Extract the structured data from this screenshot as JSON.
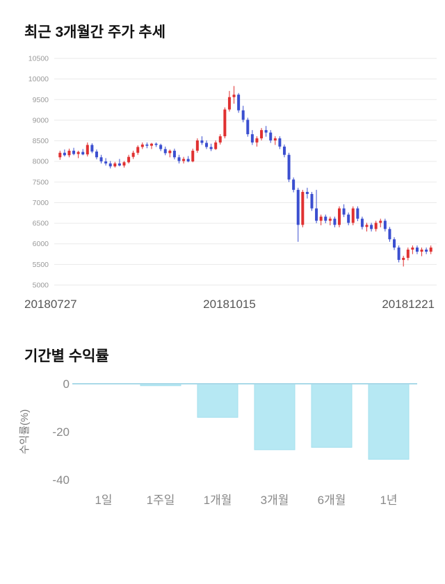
{
  "page": {
    "background": "#ffffff"
  },
  "chart_data": [
    {
      "type": "candlestick",
      "title": "최근 3개월간 주가 추세",
      "ylim": [
        5000,
        10500
      ],
      "ytick_step": 500,
      "yticks": [
        5000,
        5500,
        6000,
        6500,
        7000,
        7500,
        8000,
        8500,
        9000,
        9500,
        10000,
        10500
      ],
      "x_labels": [
        "20180727",
        "20181015",
        "20181221"
      ],
      "up_color": "#e03131",
      "down_color": "#3b4fd0",
      "grid_color": "#eaeaea",
      "tick_color": "#999999",
      "candles": [
        [
          8100,
          8260,
          8040,
          8210
        ],
        [
          8210,
          8290,
          8120,
          8150
        ],
        [
          8150,
          8310,
          8100,
          8260
        ],
        [
          8260,
          8330,
          8150,
          8180
        ],
        [
          8180,
          8260,
          8080,
          8230
        ],
        [
          8230,
          8300,
          8150,
          8170
        ],
        [
          8170,
          8460,
          8120,
          8400
        ],
        [
          8400,
          8440,
          8200,
          8240
        ],
        [
          8240,
          8290,
          8050,
          8100
        ],
        [
          8100,
          8160,
          7950,
          8000
        ],
        [
          8000,
          8080,
          7900,
          7950
        ],
        [
          7950,
          8010,
          7830,
          7880
        ],
        [
          7880,
          7990,
          7850,
          7950
        ],
        [
          7950,
          8060,
          7880,
          7900
        ],
        [
          7900,
          8010,
          7850,
          7980
        ],
        [
          7980,
          8160,
          7950,
          8110
        ],
        [
          8110,
          8260,
          8060,
          8210
        ],
        [
          8210,
          8390,
          8160,
          8350
        ],
        [
          8350,
          8460,
          8300,
          8410
        ],
        [
          8410,
          8460,
          8320,
          8380
        ],
        [
          8380,
          8450,
          8300,
          8430
        ],
        [
          8430,
          8460,
          8350,
          8400
        ],
        [
          8400,
          8430,
          8250,
          8300
        ],
        [
          8300,
          8360,
          8150,
          8200
        ],
        [
          8200,
          8290,
          8100,
          8260
        ],
        [
          8260,
          8310,
          8050,
          8100
        ],
        [
          8100,
          8160,
          7950,
          8010
        ],
        [
          8010,
          8110,
          7950,
          8060
        ],
        [
          8060,
          8130,
          7980,
          8000
        ],
        [
          8000,
          8310,
          7980,
          8260
        ],
        [
          8260,
          8560,
          8210,
          8510
        ],
        [
          8510,
          8610,
          8400,
          8450
        ],
        [
          8450,
          8510,
          8300,
          8350
        ],
        [
          8350,
          8430,
          8250,
          8300
        ],
        [
          8300,
          8510,
          8280,
          8460
        ],
        [
          8460,
          8660,
          8410,
          8610
        ],
        [
          8610,
          9310,
          8560,
          9260
        ],
        [
          9260,
          9710,
          9210,
          9560
        ],
        [
          9560,
          9830,
          9400,
          9620
        ],
        [
          9620,
          9660,
          9180,
          9240
        ],
        [
          9240,
          9350,
          8950,
          9010
        ],
        [
          9010,
          9060,
          8600,
          8660
        ],
        [
          8660,
          8760,
          8400,
          8460
        ],
        [
          8460,
          8610,
          8360,
          8560
        ],
        [
          8560,
          8810,
          8510,
          8760
        ],
        [
          8760,
          8860,
          8600,
          8700
        ],
        [
          8700,
          8760,
          8450,
          8510
        ],
        [
          8510,
          8610,
          8400,
          8560
        ],
        [
          8560,
          8610,
          8300,
          8360
        ],
        [
          8360,
          8410,
          8100,
          8160
        ],
        [
          8160,
          8210,
          7500,
          7560
        ],
        [
          7560,
          7610,
          7250,
          7310
        ],
        [
          7310,
          7360,
          6050,
          6460
        ],
        [
          6460,
          7310,
          6400,
          7260
        ],
        [
          7260,
          7360,
          7100,
          7210
        ],
        [
          7210,
          7260,
          6800,
          6860
        ],
        [
          6860,
          7310,
          6500,
          6560
        ],
        [
          6560,
          6710,
          6450,
          6660
        ],
        [
          6660,
          6710,
          6500,
          6560
        ],
        [
          6560,
          6660,
          6450,
          6610
        ],
        [
          6610,
          6660,
          6400,
          6460
        ],
        [
          6460,
          6910,
          6400,
          6860
        ],
        [
          6860,
          6960,
          6650,
          6710
        ],
        [
          6710,
          6760,
          6450,
          6510
        ],
        [
          6510,
          6910,
          6450,
          6860
        ],
        [
          6860,
          6910,
          6550,
          6610
        ],
        [
          6610,
          6660,
          6350,
          6410
        ],
        [
          6410,
          6510,
          6300,
          6460
        ],
        [
          6460,
          6510,
          6300,
          6360
        ],
        [
          6360,
          6560,
          6300,
          6510
        ],
        [
          6510,
          6610,
          6400,
          6560
        ],
        [
          6560,
          6610,
          6300,
          6360
        ],
        [
          6360,
          6410,
          6050,
          6110
        ],
        [
          6110,
          6160,
          5850,
          5910
        ],
        [
          5910,
          5960,
          5550,
          5610
        ],
        [
          5610,
          5710,
          5450,
          5660
        ],
        [
          5660,
          5910,
          5600,
          5860
        ],
        [
          5860,
          5960,
          5750,
          5910
        ],
        [
          5910,
          5960,
          5750,
          5810
        ],
        [
          5810,
          5910,
          5700,
          5860
        ],
        [
          5860,
          5910,
          5750,
          5810
        ],
        [
          5810,
          5960,
          5750,
          5910
        ]
      ]
    },
    {
      "type": "bar",
      "title": "기간별 수익률",
      "categories": [
        "1일",
        "1주일",
        "1개월",
        "3개월",
        "6개월",
        "1년"
      ],
      "values": [
        0,
        -0.8,
        -14,
        -27.5,
        -26.5,
        -31.5
      ],
      "ylabel": "수익률(%)",
      "ylim": [
        -40,
        0
      ],
      "yticks": [
        0,
        -20,
        -40
      ],
      "bar_color": "#b6e8f3",
      "bar_stroke": "#a4dfee",
      "axis_color": "#a9d9e8",
      "tick_color": "#888888",
      "label_color": "#777777"
    }
  ]
}
